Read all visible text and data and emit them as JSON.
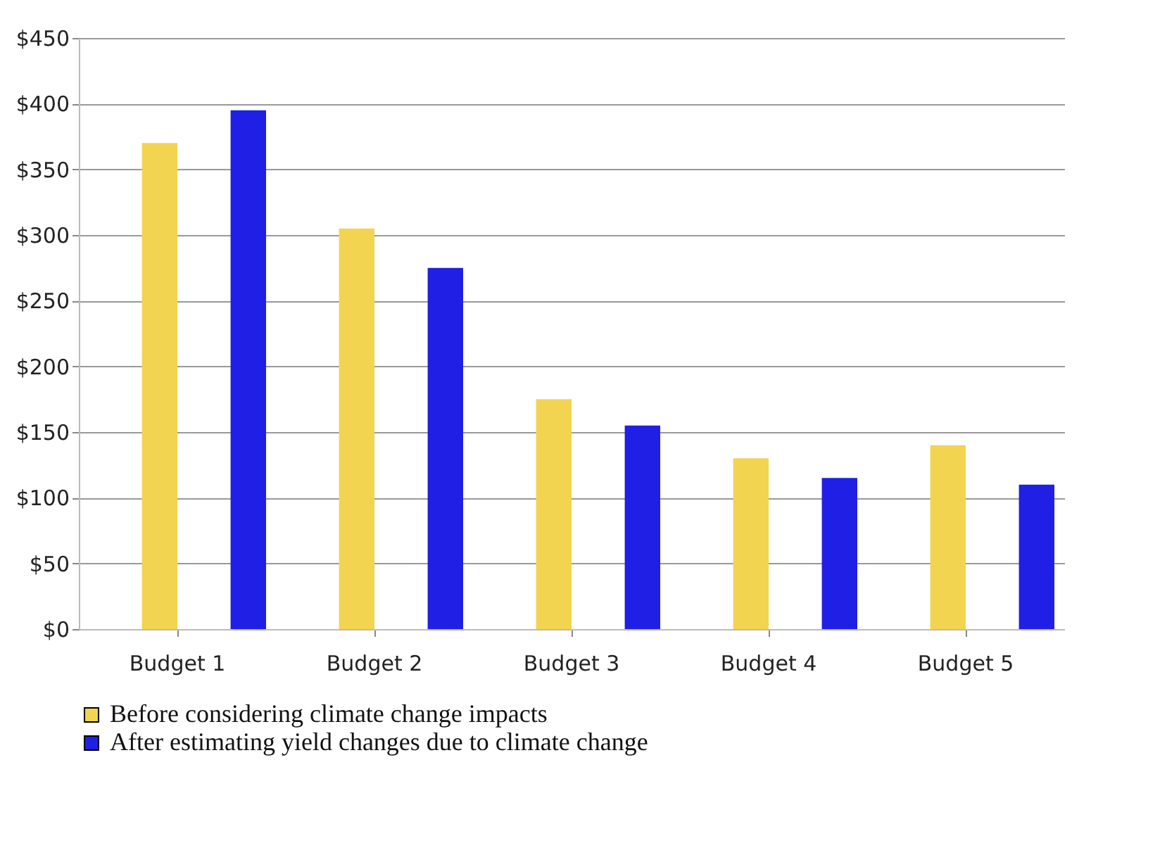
{
  "chart_data": {
    "type": "bar",
    "categories": [
      "Budget 1",
      "Budget 2",
      "Budget 3",
      "Budget 4",
      "Budget 5"
    ],
    "series": [
      {
        "name": "Before considering climate change impacts",
        "color": "#f2d450",
        "values": [
          370,
          305,
          175,
          130,
          140
        ]
      },
      {
        "name": "After estimating yield changes due to climate change",
        "color": "#1f1fe6",
        "values": [
          395,
          275,
          155,
          115,
          110
        ]
      }
    ],
    "ylim": [
      0,
      450
    ],
    "yticks": [
      {
        "value": 0,
        "label": "$0"
      },
      {
        "value": 50,
        "label": "$50"
      },
      {
        "value": 100,
        "label": "$100"
      },
      {
        "value": 150,
        "label": "$150"
      },
      {
        "value": 200,
        "label": "$200"
      },
      {
        "value": 250,
        "label": "$250"
      },
      {
        "value": 300,
        "label": "$300"
      },
      {
        "value": 350,
        "label": "$350"
      },
      {
        "value": 400,
        "label": "$400"
      },
      {
        "value": 450,
        "label": "$450"
      }
    ],
    "grid": "y",
    "legend": "bottom"
  }
}
